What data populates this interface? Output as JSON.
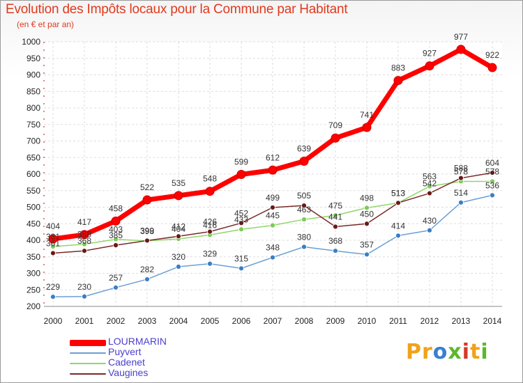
{
  "title": "Evolution des Impôts locaux pour la Commune par Habitant",
  "subtitle": "(en € et par an)",
  "logo": {
    "letters": [
      "P",
      "r",
      "o",
      "x",
      "i",
      "t",
      "i"
    ],
    "colors": [
      "#f0a21a",
      "#f0a21a",
      "#3a7fd0",
      "#5ab82a",
      "#d23a2a",
      "#f0a21a",
      "#5ab82a"
    ]
  },
  "chart_data": {
    "type": "line",
    "title": "Evolution des Impôts locaux pour la Commune par Habitant",
    "subtitle": "(en € et par an)",
    "xlabel": "",
    "ylabel": "",
    "x": [
      "2000",
      "2001",
      "2002",
      "2003",
      "2004",
      "2005",
      "2006",
      "2007",
      "2008",
      "2009",
      "2010",
      "2011",
      "2012",
      "2013",
      "2014"
    ],
    "ylim": [
      200,
      1000
    ],
    "yticks": [
      200,
      250,
      300,
      350,
      400,
      450,
      500,
      550,
      600,
      650,
      700,
      750,
      800,
      850,
      900,
      950,
      1000
    ],
    "grid": true,
    "legend_position": "bottom-left",
    "series": [
      {
        "name": "LOURMARIN",
        "color": "#ff0000",
        "marker_color": "#ff0000",
        "label_color": "#333333",
        "values": [
          404,
          417,
          458,
          522,
          535,
          548,
          599,
          612,
          639,
          709,
          741,
          883,
          927,
          977,
          922
        ]
      },
      {
        "name": "Puyvert",
        "color": "#6a9fd4",
        "marker_color": "#3a7fc4",
        "label_color": "#333333",
        "values": [
          229,
          230,
          257,
          282,
          320,
          329,
          315,
          348,
          380,
          368,
          357,
          414,
          430,
          514,
          536
        ]
      },
      {
        "name": "Cadenet",
        "color": "#8fd66a",
        "marker_color": "#7ccb55",
        "label_color": "#333333",
        "values": [
          381,
          388,
          403,
          398,
          404,
          416,
          433,
          445,
          463,
          475,
          498,
          513,
          563,
          578,
          578
        ]
      },
      {
        "name": "Vaugines",
        "color": "#7a2828",
        "marker_color": "#6a1a1a",
        "label_color": "#333333",
        "values": [
          361,
          368,
          385,
          399,
          412,
          426,
          452,
          499,
          505,
          441,
          450,
          513,
          542,
          588,
          604
        ]
      }
    ]
  }
}
